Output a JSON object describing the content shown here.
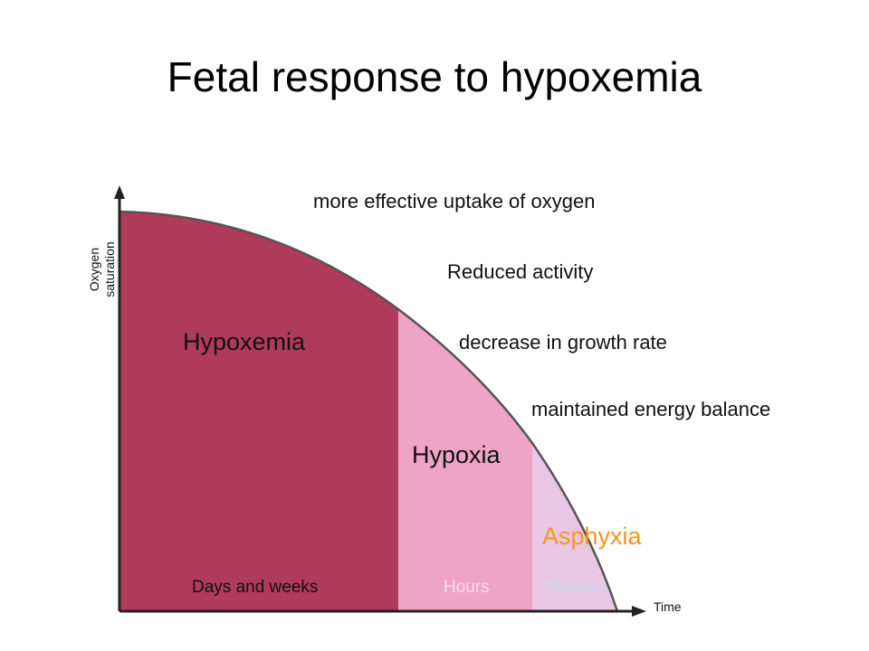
{
  "title": "Fetal response to hypoxemia",
  "axes": {
    "y_label_line1": "Oxygen",
    "y_label_line2": "saturation",
    "x_label": "Time"
  },
  "responses": [
    "more effective uptake of oxygen",
    "Reduced activity",
    "decrease in growth rate",
    "maintained energy balance"
  ],
  "phases": {
    "hypoxemia": {
      "label": "Hypoxemia",
      "duration": "Days and weeks",
      "color": "#b03a5b"
    },
    "hypoxia": {
      "label": "Hypoxia",
      "duration": "Hours",
      "color": "#eea5c5"
    },
    "asphyxia": {
      "label": "Asphyxia",
      "duration": "Minutes",
      "color": "#e7c7e4",
      "label_color": "#f7941d"
    }
  }
}
